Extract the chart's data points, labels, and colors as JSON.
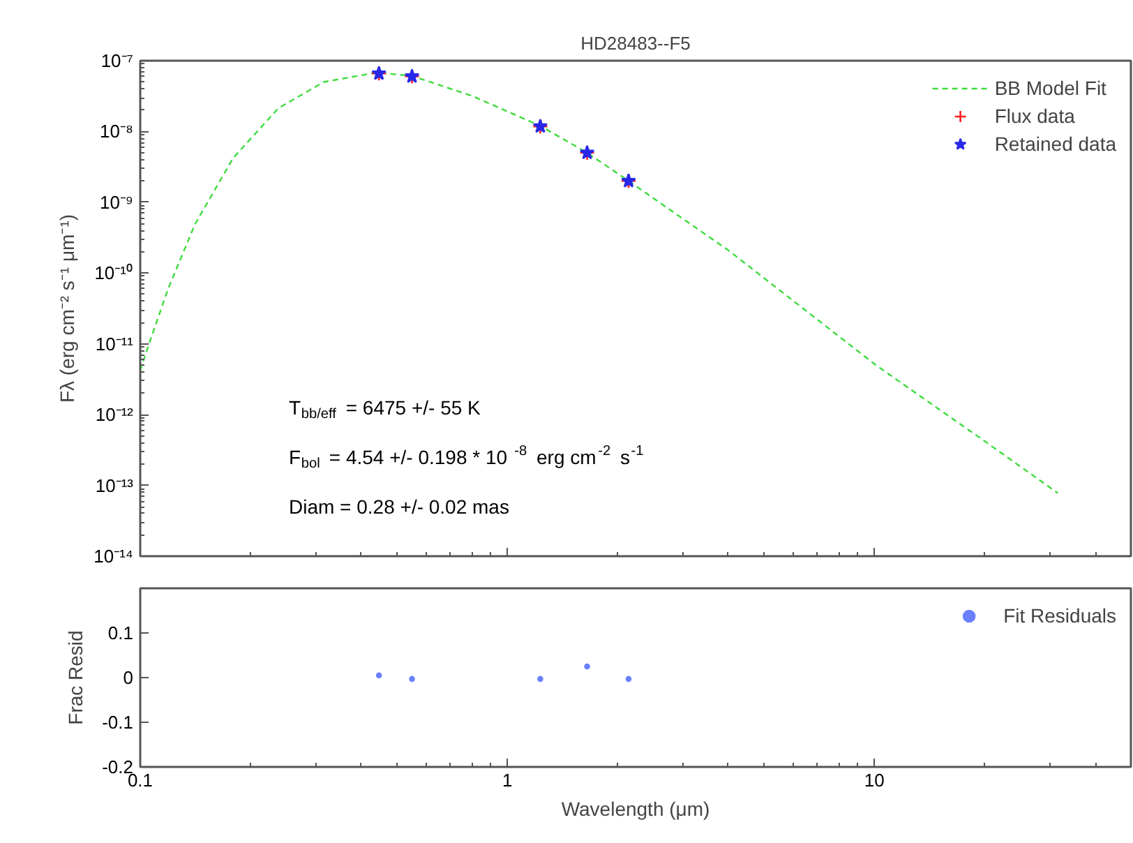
{
  "chart_data": [
    {
      "type": "line",
      "title": "HD28483--F5",
      "ylabel": "Fλ (erg cm⁻² s⁻¹ μm⁻¹)",
      "log": "xy",
      "xlim": [
        0.1,
        50
      ],
      "ylim": [
        1e-14,
        1e-07
      ],
      "xticks": [
        {
          "value": 0.1,
          "label": null
        },
        {
          "value": 1,
          "label": null
        },
        {
          "value": 10,
          "label": null
        }
      ],
      "yticks": [
        {
          "value": 1e-14,
          "label": "10⁻¹⁴"
        },
        {
          "value": 1e-13,
          "label": "10⁻¹³"
        },
        {
          "value": 1e-12,
          "label": "10⁻¹²"
        },
        {
          "value": 1e-11,
          "label": "10⁻¹¹"
        },
        {
          "value": 1e-10,
          "label": "10⁻¹⁰"
        },
        {
          "value": 1e-09,
          "label": "10⁻⁹"
        },
        {
          "value": 1e-08,
          "label": "10⁻⁸"
        },
        {
          "value": 1e-07,
          "label": "10⁻⁷"
        }
      ],
      "tick_labels": "y",
      "legend": "top right",
      "series": [
        {
          "name": "BB Model Fit",
          "type": "line",
          "line_style": "dashed",
          "color": "#3ddc3d",
          "x": [
            0.1,
            0.106,
            0.119,
            0.141,
            0.179,
            0.238,
            0.316,
            0.44,
            0.55,
            0.8,
            1.23,
            1.65,
            2.14,
            4.0,
            10.1,
            20,
            31.6
          ],
          "values": [
            4.2e-12,
            1.05e-11,
            5.9e-11,
            4.9e-10,
            4.2e-09,
            2.14e-08,
            5e-08,
            6.8e-08,
            6.1e-08,
            3.2e-08,
            1.2e-08,
            5e-09,
            2e-09,
            2.1e-10,
            5e-12,
            4.2e-13,
            7.8e-14
          ]
        },
        {
          "name": "Flux data",
          "type": "scatter",
          "marker": "cross",
          "color": "#ff2020",
          "x": [
            0.447,
            0.55,
            1.23,
            1.65,
            2.14
          ],
          "values": [
            6.6e-08,
            6e-08,
            1.18e-08,
            5e-09,
            2e-09
          ]
        },
        {
          "name": "Retained data",
          "type": "scatter",
          "marker": "star",
          "color": "#2828e8",
          "x": [
            0.447,
            0.55,
            1.23,
            1.65,
            2.14
          ],
          "values": [
            6.6e-08,
            6e-08,
            1.18e-08,
            5e-09,
            2e-09
          ]
        }
      ],
      "annotations": [
        "T$_{bb/eff}$ = 6475 +/- 55 K",
        "F$_{bol}$ = 4.54 +/- 0.198 * 10$^{-8}$ erg cm$^{-2}$ s$^{-1}$",
        "Diam = 0.28 +/- 0.02 mas"
      ]
    },
    {
      "type": "scatter",
      "xlabel": "Wavelength (μm)",
      "ylabel": "Frac Resid",
      "log": "x",
      "xlim": [
        0.1,
        50
      ],
      "xticks": [
        0.1,
        1,
        10
      ],
      "ylim": [
        -0.2,
        0.2
      ],
      "yticks": [
        -0.2,
        -0.1,
        0,
        0.1
      ],
      "legend": "top right",
      "series": [
        {
          "name": "Fit Residuals",
          "color": "#6a80ff",
          "marker": "circle",
          "x": [
            0.447,
            0.55,
            1.23,
            1.65,
            2.14
          ],
          "values": [
            0.005,
            -0.003,
            -0.003,
            0.025,
            -0.003
          ]
        }
      ]
    }
  ]
}
